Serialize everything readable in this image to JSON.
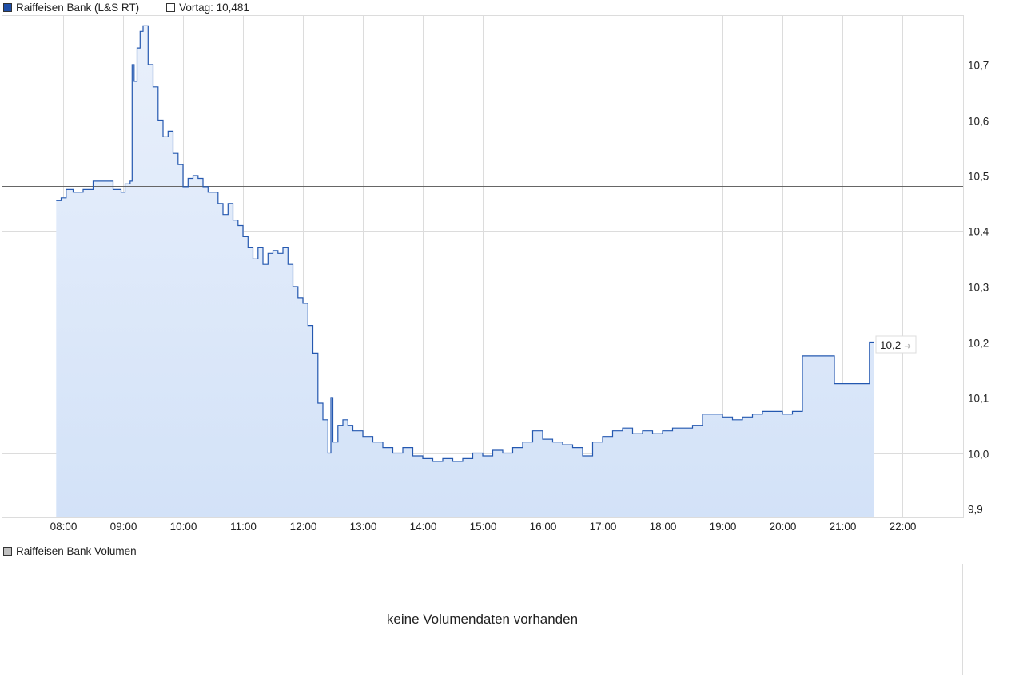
{
  "legend": {
    "series_label": "Raiffeisen Bank (L&S RT)",
    "series_color": "#1f4fa8",
    "prev_close_label": "Vortag: 10,481",
    "prev_close_color": "#ffffff"
  },
  "last_price_badge": "10,2",
  "volume": {
    "legend_label": "Raiffeisen Bank Volumen",
    "legend_color": "#c0c0c0",
    "empty_message": "keine Volumendaten vorhanden"
  },
  "colors": {
    "line": "#2458b0",
    "fill_top": "#e9f0fb",
    "fill_bottom": "#d3e2f8",
    "grid": "#dcdcdc",
    "prev_close_line": "#666666"
  },
  "chart_data": {
    "type": "area",
    "title": "Raiffeisen Bank (L&S RT)",
    "xlabel": "",
    "ylabel": "",
    "x_ticks": [
      "08:00",
      "09:00",
      "10:00",
      "11:00",
      "12:00",
      "13:00",
      "14:00",
      "15:00",
      "16:00",
      "17:00",
      "18:00",
      "19:00",
      "20:00",
      "21:00",
      "22:00"
    ],
    "y_ticks": [
      "9,9",
      "10,0",
      "10,1",
      "10,2",
      "10,3",
      "10,4",
      "10,5",
      "10,6",
      "10,7"
    ],
    "ylim": [
      9.885,
      10.79
    ],
    "grid": true,
    "reference_line": {
      "label": "Vortag",
      "value": 10.481
    },
    "last_value": 10.2,
    "series": [
      {
        "name": "Raiffeisen Bank (L&S RT)",
        "x": [
          "07:53",
          "07:58",
          "08:03",
          "08:10",
          "08:20",
          "08:30",
          "08:40",
          "08:50",
          "08:58",
          "09:02",
          "09:07",
          "09:09",
          "09:11",
          "09:14",
          "09:17",
          "09:20",
          "09:25",
          "09:30",
          "09:35",
          "09:40",
          "09:45",
          "09:50",
          "09:55",
          "10:00",
          "10:05",
          "10:10",
          "10:15",
          "10:20",
          "10:25",
          "10:30",
          "10:35",
          "10:40",
          "10:45",
          "10:50",
          "10:55",
          "11:00",
          "11:05",
          "11:10",
          "11:15",
          "11:20",
          "11:25",
          "11:30",
          "11:35",
          "11:40",
          "11:45",
          "11:50",
          "11:55",
          "12:00",
          "12:05",
          "12:10",
          "12:15",
          "12:20",
          "12:25",
          "12:28",
          "12:30",
          "12:35",
          "12:40",
          "12:45",
          "12:50",
          "13:00",
          "13:10",
          "13:20",
          "13:30",
          "13:40",
          "13:50",
          "14:00",
          "14:10",
          "14:20",
          "14:30",
          "14:40",
          "14:50",
          "15:00",
          "15:10",
          "15:20",
          "15:30",
          "15:40",
          "15:50",
          "16:00",
          "16:10",
          "16:20",
          "16:30",
          "16:40",
          "16:50",
          "17:00",
          "17:10",
          "17:20",
          "17:30",
          "17:40",
          "17:50",
          "18:00",
          "18:10",
          "18:20",
          "18:30",
          "18:40",
          "18:50",
          "19:00",
          "19:10",
          "19:20",
          "19:30",
          "19:40",
          "19:50",
          "20:00",
          "20:10",
          "20:18",
          "20:20",
          "20:50",
          "20:52",
          "21:25",
          "21:27",
          "21:32"
        ],
        "values": [
          10.455,
          10.46,
          10.475,
          10.47,
          10.475,
          10.49,
          10.49,
          10.475,
          10.47,
          10.485,
          10.49,
          10.7,
          10.67,
          10.73,
          10.76,
          10.77,
          10.7,
          10.66,
          10.6,
          10.57,
          10.58,
          10.54,
          10.52,
          10.48,
          10.495,
          10.5,
          10.495,
          10.48,
          10.47,
          10.47,
          10.45,
          10.43,
          10.45,
          10.42,
          10.41,
          10.39,
          10.37,
          10.35,
          10.37,
          10.34,
          10.36,
          10.365,
          10.36,
          10.37,
          10.34,
          10.3,
          10.28,
          10.27,
          10.23,
          10.18,
          10.09,
          10.06,
          10.0,
          10.1,
          10.02,
          10.05,
          10.06,
          10.05,
          10.04,
          10.03,
          10.02,
          10.01,
          10.0,
          10.01,
          9.995,
          9.99,
          9.985,
          9.99,
          9.985,
          9.99,
          10.0,
          9.995,
          10.005,
          10.0,
          10.01,
          10.02,
          10.04,
          10.025,
          10.02,
          10.015,
          10.01,
          9.995,
          10.02,
          10.03,
          10.04,
          10.045,
          10.035,
          10.04,
          10.035,
          10.04,
          10.045,
          10.045,
          10.05,
          10.07,
          10.07,
          10.065,
          10.06,
          10.065,
          10.07,
          10.075,
          10.075,
          10.07,
          10.075,
          10.075,
          10.175,
          10.175,
          10.125,
          10.125,
          10.2,
          10.2
        ]
      }
    ]
  }
}
